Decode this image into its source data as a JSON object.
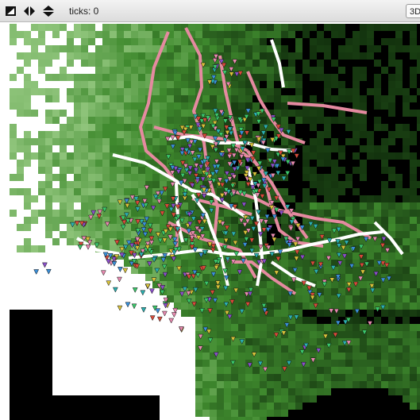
{
  "toolbar": {
    "ticks_label": "ticks: 0",
    "view3d_label": "3D",
    "icons": [
      "tilt-icon",
      "horizontal-arrows-icon",
      "vertical-arrows-icon"
    ]
  },
  "world": {
    "colors": {
      "vegetation_light": "#9fd08a",
      "vegetation_mid": "#3f8a2e",
      "vegetation_dark": "#0f2b0b",
      "void": "#000000",
      "open_ground": "#ffffff",
      "roads_primary": "#ffffff",
      "roads_secondary": "#e58aa0"
    },
    "agent_colors": [
      "#3a8fd8",
      "#8a4fc8",
      "#d8c23a",
      "#d84a3a",
      "#3ac86a",
      "#e88ab0",
      "#2bb0b0"
    ]
  }
}
